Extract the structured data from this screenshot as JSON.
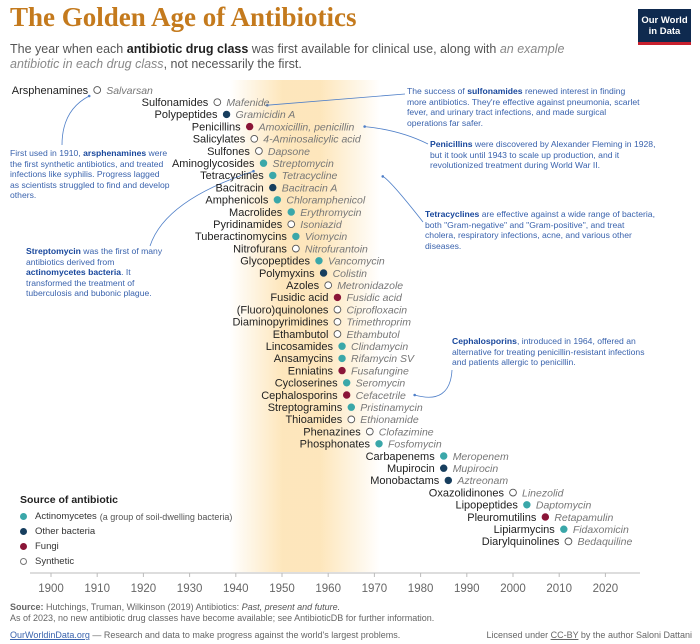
{
  "title": "The Golden Age of Antibiotics",
  "subtitle": {
    "pre": "The year when each ",
    "bold": "antibiotic drug class",
    "mid": " was first available for clinical use, along with ",
    "italic": "an example antibiotic in each drug class",
    "post": ", not necessarily the first."
  },
  "logo": {
    "line1": "Our World",
    "line2": "in Data"
  },
  "colors": {
    "Actinomycetes": "#3aa7a9",
    "Other bacteria": "#173e5e",
    "Fungi": "#8a1538",
    "Synthetic": "#ffffff",
    "highlight": "#fde2b0",
    "annotation": "#3a63ad",
    "title": "#c47a1d"
  },
  "legend": {
    "title": "Source of antibiotic",
    "items": [
      {
        "label": "Actinomycetes",
        "note": "(a group of soil-dwelling bacteria)",
        "source": "Actinomycetes"
      },
      {
        "label": "Other bacteria",
        "note": "",
        "source": "Other bacteria"
      },
      {
        "label": "Fungi",
        "note": "",
        "source": "Fungi"
      },
      {
        "label": "Synthetic",
        "note": "",
        "source": "Synthetic"
      }
    ]
  },
  "annotations": {
    "arsphenamines": {
      "pre": "First used in 1910, ",
      "bold": "arsphenamines",
      "post": " were the first synthetic antibiotics, and treated infections like syphilis. Progress lagged as scientists struggled to find and develop others."
    },
    "streptomycin": {
      "bold1": "Streptomycin",
      "mid": " was the first of many antibiotics derived from ",
      "bold2": "actinomycetes bacteria",
      "post": ". It transformed the treatment of tuberculosis and bubonic plague."
    },
    "sulfonamides": {
      "pre": "The success of ",
      "bold": "sulfonamides",
      "post": " renewed interest in finding more antibiotics. They're effective against pneumonia, scarlet fever, and urinary tract infections, and made surgical operations far safer."
    },
    "penicillins": {
      "bold": "Penicillins",
      "post": " were discovered by Alexander Fleming in 1928, but it took until 1943 to scale up production, and it revolutionized treatment during World War II."
    },
    "tetracyclines": {
      "bold": "Tetracyclines",
      "post": " are effective against a wide range of bacteria, both \"Gram-negative\" and \"Gram-positive\", and treat cholera, respiratory infections, acne, and various other diseases."
    },
    "cephalosporins": {
      "bold": "Cephalosporins",
      "post": ", introduced in 1964, offered an alternative for treating penicillin-resistant infections and patients allergic to penicillin."
    }
  },
  "chart_data": {
    "type": "scatter",
    "title": "The Golden Age of Antibiotics",
    "xlim": [
      1900,
      2020
    ],
    "x_ticks": [
      1900,
      1910,
      1920,
      1930,
      1940,
      1950,
      1960,
      1970,
      1980,
      1990,
      2000,
      2010,
      2020
    ],
    "highlight_range": [
      1940,
      1970
    ],
    "x_field": "year",
    "categories_field": "class",
    "points": [
      {
        "class": "Arsphenamines",
        "example": "Salvarsan",
        "year": 1910,
        "source": "Synthetic"
      },
      {
        "class": "Sulfonamides",
        "example": "Mafenide",
        "year": 1936,
        "source": "Synthetic"
      },
      {
        "class": "Polypeptides",
        "example": "Gramicidin A",
        "year": 1938,
        "source": "Other bacteria"
      },
      {
        "class": "Penicillins",
        "example": "Amoxicillin, penicillin",
        "year": 1943,
        "source": "Fungi"
      },
      {
        "class": "Salicylates",
        "example": "4-Aminosalicylic acid",
        "year": 1944,
        "source": "Synthetic"
      },
      {
        "class": "Sulfones",
        "example": "Dapsone",
        "year": 1945,
        "source": "Synthetic"
      },
      {
        "class": "Aminoglycosides",
        "example": "Streptomycin",
        "year": 1946,
        "source": "Actinomycetes"
      },
      {
        "class": "Tetracyclines",
        "example": "Tetracycline",
        "year": 1948,
        "source": "Actinomycetes"
      },
      {
        "class": "Bacitracin",
        "example": "Bacitracin A",
        "year": 1948,
        "source": "Other bacteria"
      },
      {
        "class": "Amphenicols",
        "example": "Chloramphenicol",
        "year": 1949,
        "source": "Actinomycetes"
      },
      {
        "class": "Macrolides",
        "example": "Erythromycin",
        "year": 1952,
        "source": "Actinomycetes"
      },
      {
        "class": "Pyridinamides",
        "example": "Isoniazid",
        "year": 1952,
        "source": "Synthetic"
      },
      {
        "class": "Tuberactinomycins",
        "example": "Viomycin",
        "year": 1953,
        "source": "Actinomycetes"
      },
      {
        "class": "Nitrofurans",
        "example": "Nitrofurantoin",
        "year": 1953,
        "source": "Synthetic"
      },
      {
        "class": "Glycopeptides",
        "example": "Vancomycin",
        "year": 1958,
        "source": "Actinomycetes"
      },
      {
        "class": "Polymyxins",
        "example": "Colistin",
        "year": 1959,
        "source": "Other bacteria"
      },
      {
        "class": "Azoles",
        "example": "Metronidazole",
        "year": 1960,
        "source": "Synthetic"
      },
      {
        "class": "Fusidic acid",
        "example": "Fusidic acid",
        "year": 1962,
        "source": "Fungi"
      },
      {
        "class": "(Fluoro)quinolones",
        "example": "Ciprofloxacin",
        "year": 1962,
        "source": "Synthetic"
      },
      {
        "class": "Diaminopyrimidines",
        "example": "Trimethroprim",
        "year": 1962,
        "source": "Synthetic"
      },
      {
        "class": "Ethambutol",
        "example": "Ethambutol",
        "year": 1962,
        "source": "Synthetic"
      },
      {
        "class": "Lincosamides",
        "example": "Clindamycin",
        "year": 1963,
        "source": "Actinomycetes"
      },
      {
        "class": "Ansamycins",
        "example": "Rifamycin SV",
        "year": 1963,
        "source": "Actinomycetes"
      },
      {
        "class": "Enniatins",
        "example": "Fusafungine",
        "year": 1963,
        "source": "Fungi"
      },
      {
        "class": "Cycloserines",
        "example": "Seromycin",
        "year": 1964,
        "source": "Actinomycetes"
      },
      {
        "class": "Cephalosporins",
        "example": "Cefacetrile",
        "year": 1964,
        "source": "Fungi"
      },
      {
        "class": "Streptogramins",
        "example": "Pristinamycin",
        "year": 1965,
        "source": "Actinomycetes"
      },
      {
        "class": "Thioamides",
        "example": "Ethionamide",
        "year": 1965,
        "source": "Synthetic"
      },
      {
        "class": "Phenazines",
        "example": "Clofazimine",
        "year": 1969,
        "source": "Synthetic"
      },
      {
        "class": "Phosphonates",
        "example": "Fosfomycin",
        "year": 1971,
        "source": "Actinomycetes"
      },
      {
        "class": "Carbapenems",
        "example": "Meropenem",
        "year": 1985,
        "source": "Actinomycetes"
      },
      {
        "class": "Mupirocin",
        "example": "Mupirocin",
        "year": 1985,
        "source": "Other bacteria"
      },
      {
        "class": "Monobactams",
        "example": "Aztreonam",
        "year": 1986,
        "source": "Other bacteria"
      },
      {
        "class": "Oxazolidinones",
        "example": "Linezolid",
        "year": 2000,
        "source": "Synthetic"
      },
      {
        "class": "Lipopeptides",
        "example": "Daptomycin",
        "year": 2003,
        "source": "Actinomycetes"
      },
      {
        "class": "Pleuromutilins",
        "example": "Retapamulin",
        "year": 2007,
        "source": "Fungi"
      },
      {
        "class": "Lipiarmycins",
        "example": "Fidaxomicin",
        "year": 2011,
        "source": "Actinomycetes"
      },
      {
        "class": "Diarylquinolines",
        "example": "Bedaquiline",
        "year": 2012,
        "source": "Synthetic"
      }
    ]
  },
  "footer": {
    "source_label": "Source:",
    "source_text": "Hutchings, Truman, Wilkinson (2019) Antibiotics: ",
    "source_italic": "Past, present and future.",
    "note": "As of 2023, no new antibiotic drug classes have become available; see AntibioticDB for further information.",
    "owid": "OurWorldinData.org",
    "tagline": " — Research and data to make progress against the world's largest problems.",
    "license_pre": "Licensed under ",
    "license_link": "CC-BY",
    "license_post": " by the author Saloni Dattani"
  }
}
